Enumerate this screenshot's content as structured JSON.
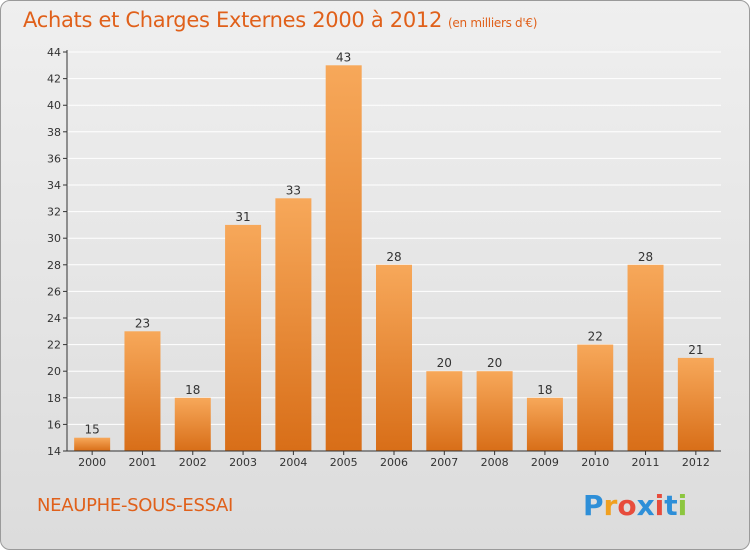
{
  "title": "Achats et Charges Externes 2000 à 2012",
  "unit": "(en milliers d'€)",
  "commune": "NEAUPHE-SOUS-ESSAI",
  "logo": {
    "letters": [
      "P",
      "r",
      "o",
      "x",
      "i",
      "t",
      "i"
    ],
    "colors": [
      "#2e8fd8",
      "#f0a020",
      "#e74c3c",
      "#2e8fd8",
      "#e74c3c",
      "#2e8fd8",
      "#8cc63f"
    ]
  },
  "colors": {
    "bar_top": "#f7a85a",
    "bar_bottom": "#d86e18",
    "grid": "#ffffff",
    "axis": "#333333"
  },
  "chart_data": {
    "type": "bar",
    "title": "Achats et Charges Externes 2000 à 2012",
    "xlabel": "",
    "ylabel": "",
    "categories": [
      "2000",
      "2001",
      "2002",
      "2003",
      "2004",
      "2005",
      "2006",
      "2007",
      "2008",
      "2009",
      "2010",
      "2011",
      "2012"
    ],
    "values": [
      15,
      23,
      18,
      31,
      33,
      43,
      28,
      20,
      20,
      18,
      22,
      28,
      21
    ],
    "ylim": [
      14,
      44
    ],
    "yticks": [
      14,
      16,
      18,
      20,
      22,
      24,
      26,
      28,
      30,
      32,
      34,
      36,
      38,
      40,
      42,
      44
    ],
    "grid": true
  }
}
